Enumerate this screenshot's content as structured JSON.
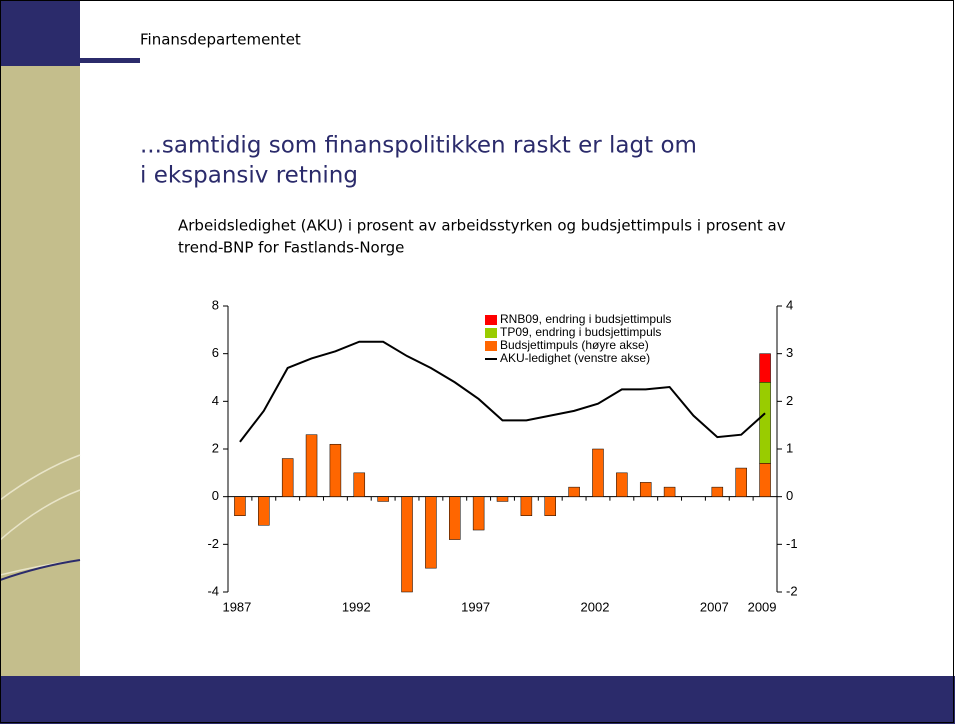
{
  "header": {
    "organization": "Finansdepartementet"
  },
  "slide": {
    "title_lines": [
      "...samtidig som finanspolitikken raskt er lagt om",
      "i ekspansiv retning"
    ],
    "subtitle_lines": [
      "Arbeidsledighet (AKU) i prosent av arbeidsstyrken og budsjettimpuls i prosent av",
      "trend-BNP for Fastlands-Norge"
    ]
  },
  "chart_data": {
    "type": "bar",
    "categories": [
      "1987",
      null,
      null,
      null,
      null,
      "1992",
      null,
      null,
      null,
      null,
      "1997",
      null,
      null,
      null,
      null,
      "2002",
      null,
      null,
      null,
      null,
      "2007",
      null,
      "2009"
    ],
    "series": [
      {
        "name": "RNB09, endring i budsjettimpuls",
        "color": "#ff0000",
        "kind": "bar",
        "axis": "y2",
        "values": [
          null,
          null,
          null,
          null,
          null,
          null,
          null,
          null,
          null,
          null,
          null,
          null,
          null,
          null,
          null,
          null,
          null,
          null,
          null,
          null,
          null,
          null,
          0.6
        ]
      },
      {
        "name": "TP09, endring i budsjettimpuls",
        "color": "#99cc00",
        "kind": "bar",
        "axis": "y2",
        "values": [
          null,
          null,
          null,
          null,
          null,
          null,
          null,
          null,
          null,
          null,
          null,
          null,
          null,
          null,
          null,
          null,
          null,
          null,
          null,
          null,
          null,
          null,
          1.7
        ]
      },
      {
        "name": "Budsjettimpuls (høyre akse)",
        "color": "#ff6600",
        "kind": "bar",
        "axis": "y2",
        "values": [
          -0.4,
          -0.6,
          0.8,
          1.3,
          1.1,
          0.5,
          -0.1,
          -2,
          -1.5,
          -0.9,
          -0.7,
          -0.1,
          -0.4,
          -0.4,
          0.2,
          1.0,
          0.5,
          0.3,
          0.2,
          0,
          0.2,
          0.6,
          0.7
        ]
      },
      {
        "name": "AKU-ledighet (venstre akse)",
        "color": "#000000",
        "kind": "line",
        "axis": "y",
        "values": [
          2.3,
          3.6,
          5.4,
          5.8,
          6.1,
          6.5,
          6.5,
          5.9,
          5.4,
          4.8,
          4.1,
          3.2,
          3.2,
          3.4,
          3.6,
          3.9,
          4.5,
          4.5,
          4.6,
          3.4,
          2.5,
          2.6,
          3.5
        ]
      }
    ],
    "ylim": [
      -4,
      8
    ],
    "yticks": [
      -4,
      -2,
      0,
      2,
      4,
      6,
      8
    ],
    "y2lim": [
      -2,
      4
    ],
    "y2ticks": [
      -2,
      -1,
      0,
      1,
      2,
      3,
      4
    ],
    "legend": "top-right"
  }
}
